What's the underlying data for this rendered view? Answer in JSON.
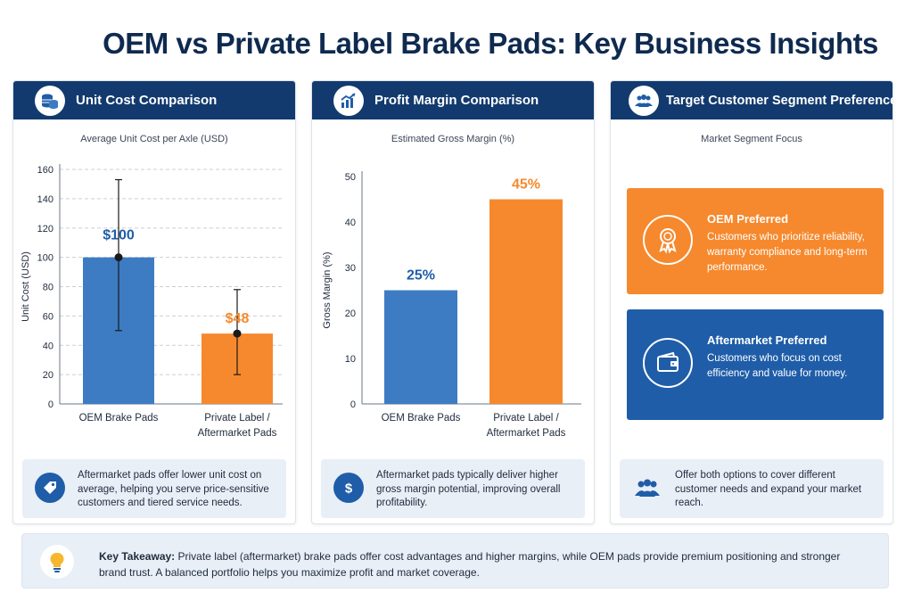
{
  "title": "OEM vs Private Label Brake Pads: Key Business Insights",
  "colors": {
    "navy": "#123a6e",
    "blue": "#3d7cc3",
    "orange": "#f6892d",
    "note_bg": "#e9eff7"
  },
  "panels": {
    "cost": {
      "header": "Unit Cost Comparison",
      "icon": "coins-icon",
      "note": "Aftermarket pads offer lower unit cost on average, helping you serve price-sensitive customers and tiered service needs.",
      "note_icon": "price-tag-icon"
    },
    "margin": {
      "header": "Profit Margin Comparison",
      "icon": "growth-chart-icon",
      "note": "Aftermarket pads typically deliver higher gross margin potential, improving overall profitability.",
      "note_icon": "dollar-icon"
    },
    "segment": {
      "header": "Target Customer Segment Preference",
      "icon": "users-icon",
      "subtitle": "Market Segment Focus",
      "oem": {
        "title": "OEM Preferred",
        "desc": "Customers who prioritize reliability, warranty compliance and long-term performance.",
        "icon": "award-ribbon-icon"
      },
      "aftermarket": {
        "title": "Aftermarket Preferred",
        "desc": "Customers who focus on cost efficiency and value for money.",
        "icon": "wallet-icon"
      },
      "note": "Offer both options to cover different customer needs and expand your market reach.",
      "note_icon": "users-icon"
    }
  },
  "takeaway": {
    "label": "Key Takeaway:",
    "text": " Private label (aftermarket) brake pads offer cost advantages and higher margins, while OEM pads provide premium positioning and stronger brand trust. A balanced portfolio helps you maximize profit and market coverage.",
    "icon": "lightbulb-icon"
  },
  "chart_data": [
    {
      "type": "bar",
      "title": "Average Unit Cost per Axle (USD)",
      "ylabel": "Unit Cost (USD)",
      "categories": [
        [
          "OEM Brake Pads"
        ],
        [
          "Private Label /",
          "Aftermarket Pads"
        ]
      ],
      "values": [
        100,
        48
      ],
      "value_labels": [
        "$100",
        "$48"
      ],
      "error_low": [
        50,
        20
      ],
      "error_high": [
        153,
        78
      ],
      "colors": [
        "#3d7cc3",
        "#f6892d"
      ],
      "ylim": [
        0,
        160
      ],
      "yticks": [
        0,
        20,
        40,
        60,
        80,
        100,
        120,
        140,
        160
      ],
      "grid": true
    },
    {
      "type": "bar",
      "title": "Estimated Gross Margin (%)",
      "ylabel": "Gross Margin (%)",
      "categories": [
        [
          "OEM Brake Pads"
        ],
        [
          "Private Label /",
          "Aftermarket Pads"
        ]
      ],
      "values": [
        25,
        45
      ],
      "value_labels": [
        "25%",
        "45%"
      ],
      "colors": [
        "#3d7cc3",
        "#f6892d"
      ],
      "ylim": [
        0,
        50
      ],
      "yticks": [
        0,
        10,
        20,
        30,
        40,
        50
      ],
      "grid": false
    }
  ]
}
